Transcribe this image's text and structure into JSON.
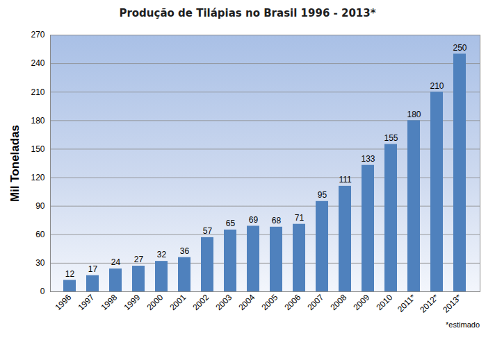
{
  "chart_data": {
    "type": "bar",
    "title": "Produção de Tilápias no Brasil 1996 - 2013*",
    "y_label": "Mil Toneladas",
    "caption": "*estimado",
    "categories": [
      "1996",
      "1997",
      "1998",
      "1999",
      "2000",
      "2001",
      "2002",
      "2003",
      "2004",
      "2005",
      "2006",
      "2007",
      "2008",
      "2009",
      "2010",
      "2011*",
      "2012*",
      "2013*"
    ],
    "values": [
      12,
      17,
      24,
      27,
      32,
      36,
      57,
      65,
      69,
      68,
      71,
      95,
      111,
      133,
      155,
      180,
      210,
      250
    ],
    "color": "#4f81bd",
    "ylim": [
      0,
      270
    ],
    "yticks": [
      0,
      30,
      60,
      90,
      120,
      150,
      180,
      210,
      240,
      270
    ],
    "grid": true,
    "data_labels": true
  }
}
